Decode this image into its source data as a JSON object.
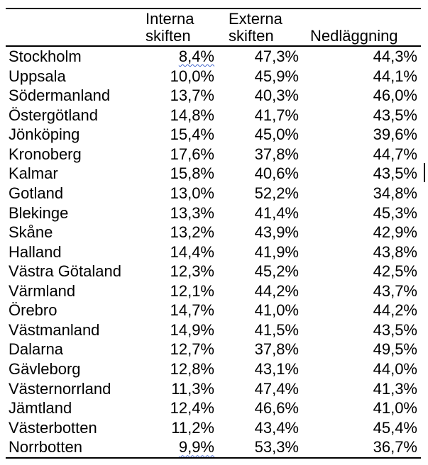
{
  "table": {
    "header": {
      "region": "",
      "col1": "Interna\nskiften",
      "col2": "Externa\nskiften",
      "col3": "Nedläggning"
    },
    "rows": [
      {
        "region": "Stockholm",
        "c1": "8,4%",
        "c2": "47,3%",
        "c3": "44,3%",
        "squiggle": "c1"
      },
      {
        "region": "Uppsala",
        "c1": "10,0%",
        "c2": "45,9%",
        "c3": "44,1%"
      },
      {
        "region": "Södermanland",
        "c1": "13,7%",
        "c2": "40,3%",
        "c3": "46,0%"
      },
      {
        "region": "Östergötland",
        "c1": "14,8%",
        "c2": "41,7%",
        "c3": "43,5%"
      },
      {
        "region": "Jönköping",
        "c1": "15,4%",
        "c2": "45,0%",
        "c3": "39,6%"
      },
      {
        "region": "Kronoberg",
        "c1": "17,6%",
        "c2": "37,8%",
        "c3": "44,7%"
      },
      {
        "region": "Kalmar",
        "c1": "15,8%",
        "c2": "40,6%",
        "c3": "43,5%"
      },
      {
        "region": "Gotland",
        "c1": "13,0%",
        "c2": "52,2%",
        "c3": "34,8%"
      },
      {
        "region": "Blekinge",
        "c1": "13,3%",
        "c2": "41,4%",
        "c3": "45,3%"
      },
      {
        "region": "Skåne",
        "c1": "13,2%",
        "c2": "43,9%",
        "c3": "42,9%"
      },
      {
        "region": "Halland",
        "c1": "14,4%",
        "c2": "41,9%",
        "c3": "43,8%"
      },
      {
        "region": "Västra Götaland",
        "c1": "12,3%",
        "c2": "45,2%",
        "c3": "42,5%"
      },
      {
        "region": "Värmland",
        "c1": "12,1%",
        "c2": "44,2%",
        "c3": "43,7%"
      },
      {
        "region": "Örebro",
        "c1": "14,7%",
        "c2": "41,0%",
        "c3": "44,2%"
      },
      {
        "region": "Västmanland",
        "c1": "14,9%",
        "c2": "41,5%",
        "c3": "43,5%"
      },
      {
        "region": "Dalarna",
        "c1": "12,7%",
        "c2": "37,8%",
        "c3": "49,5%"
      },
      {
        "region": "Gävleborg",
        "c1": "12,8%",
        "c2": "43,1%",
        "c3": "44,0%"
      },
      {
        "region": "Västernorrland",
        "c1": "11,3%",
        "c2": "47,4%",
        "c3": "41,3%"
      },
      {
        "region": "Jämtland",
        "c1": "12,4%",
        "c2": "46,6%",
        "c3": "41,0%"
      },
      {
        "region": "Västerbotten",
        "c1": "11,2%",
        "c2": "43,4%",
        "c3": "45,4%"
      },
      {
        "region": "Norrbotten",
        "c1": "9,9%",
        "c2": "53,3%",
        "c3": "36,7%",
        "squiggle": "c1"
      }
    ]
  },
  "colors": {
    "text": "#000000",
    "background": "#ffffff",
    "border": "#000000",
    "spellcheck_underline": "#3f63cb"
  }
}
